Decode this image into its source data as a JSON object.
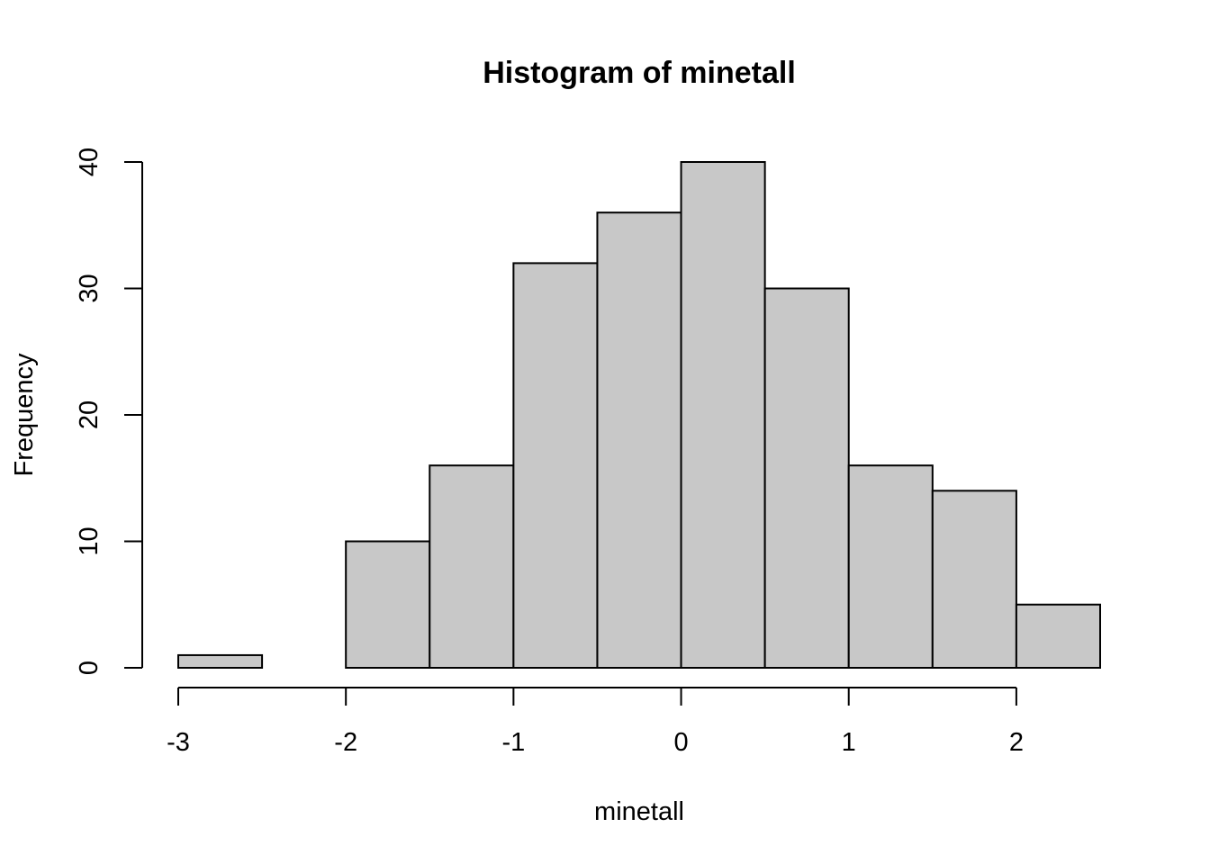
{
  "chart_data": {
    "type": "bar",
    "title": "Histogram of minetall",
    "xlabel": "minetall",
    "ylabel": "Frequency",
    "bin_edges": [
      -3,
      -2.5,
      -2,
      -1.5,
      -1,
      -0.5,
      0,
      0.5,
      1,
      1.5,
      2,
      2.5
    ],
    "values": [
      1,
      0,
      10,
      16,
      32,
      36,
      40,
      30,
      16,
      14,
      5
    ],
    "xlim": [
      -3,
      2.5
    ],
    "ylim": [
      0,
      40
    ],
    "x_ticks": [
      -3,
      -2,
      -1,
      0,
      1,
      2
    ],
    "x_tick_labels": [
      "-3",
      "-2",
      "-1",
      "0",
      "1",
      "2"
    ],
    "y_ticks": [
      0,
      10,
      20,
      30,
      40
    ],
    "y_tick_labels": [
      "0",
      "10",
      "20",
      "30",
      "40"
    ],
    "bar_color": "#c8c8c8",
    "edge_color": "#000000",
    "grid": false
  }
}
